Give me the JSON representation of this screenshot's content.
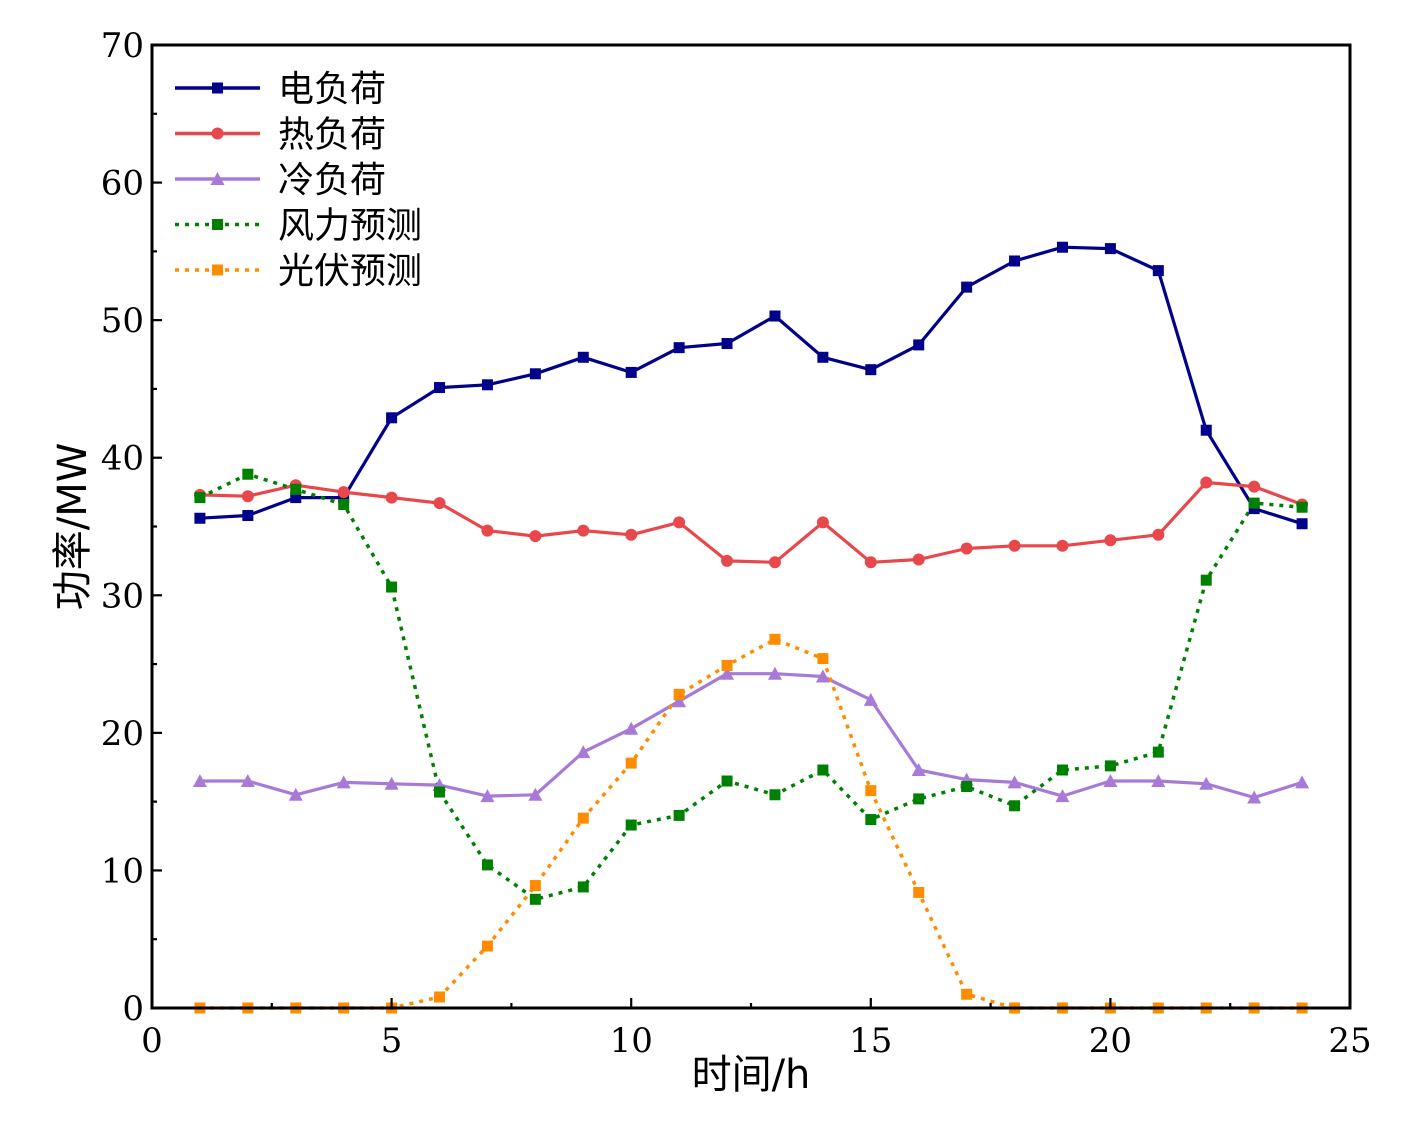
{
  "chart_data": {
    "type": "line",
    "title": "",
    "xlabel": "时间/h",
    "ylabel": "功率/MW",
    "xlim": [
      0,
      25
    ],
    "ylim": [
      0,
      70
    ],
    "xticks": [
      0,
      5,
      10,
      15,
      20,
      25
    ],
    "yticks": [
      0,
      10,
      20,
      30,
      40,
      50,
      60,
      70
    ],
    "grid": false,
    "legend_position": "top-left",
    "x": [
      1,
      2,
      3,
      4,
      5,
      6,
      7,
      8,
      9,
      10,
      11,
      12,
      13,
      14,
      15,
      16,
      17,
      18,
      19,
      20,
      21,
      22,
      23,
      24
    ],
    "series": [
      {
        "name": "电负荷",
        "color": "#00008b",
        "line": "solid",
        "marker": "square",
        "values": [
          35.6,
          35.8,
          37.1,
          37.1,
          42.9,
          45.1,
          45.3,
          46.1,
          47.3,
          46.2,
          48.0,
          48.3,
          50.3,
          47.3,
          46.4,
          48.2,
          52.4,
          54.3,
          55.3,
          55.2,
          53.6,
          42.0,
          36.3,
          35.2
        ]
      },
      {
        "name": "热负荷",
        "color": "#e8474b",
        "line": "solid",
        "marker": "circle",
        "values": [
          37.3,
          37.2,
          38.0,
          37.5,
          37.1,
          36.7,
          34.7,
          34.3,
          34.7,
          34.4,
          35.3,
          32.5,
          32.4,
          35.3,
          32.4,
          32.6,
          33.4,
          33.6,
          33.6,
          34.0,
          34.4,
          38.2,
          37.9,
          36.6
        ]
      },
      {
        "name": "冷负荷",
        "color": "#a87ad8",
        "line": "solid",
        "marker": "triangle",
        "values": [
          16.5,
          16.5,
          15.5,
          16.4,
          16.3,
          16.2,
          15.4,
          15.5,
          18.6,
          20.3,
          22.3,
          24.3,
          24.3,
          24.1,
          22.4,
          17.3,
          16.6,
          16.4,
          15.4,
          16.5,
          16.5,
          16.3,
          15.3,
          16.4
        ]
      },
      {
        "name": "风力预测",
        "color": "#008000",
        "line": "dotted",
        "marker": "square",
        "values": [
          37.1,
          38.8,
          37.7,
          36.6,
          30.6,
          15.7,
          10.4,
          7.9,
          8.8,
          13.3,
          14.0,
          16.5,
          15.5,
          17.3,
          13.7,
          15.2,
          16.1,
          14.7,
          17.3,
          17.6,
          18.6,
          31.1,
          36.7,
          36.4
        ]
      },
      {
        "name": "光伏预测",
        "color": "#ff8c00",
        "line": "dotted",
        "marker": "square",
        "values": [
          0,
          0,
          0,
          0,
          0,
          0.8,
          4.5,
          8.9,
          13.8,
          17.8,
          22.8,
          24.9,
          26.8,
          25.4,
          15.8,
          8.4,
          1.0,
          0,
          0,
          0,
          0,
          0,
          0,
          0
        ]
      }
    ]
  }
}
